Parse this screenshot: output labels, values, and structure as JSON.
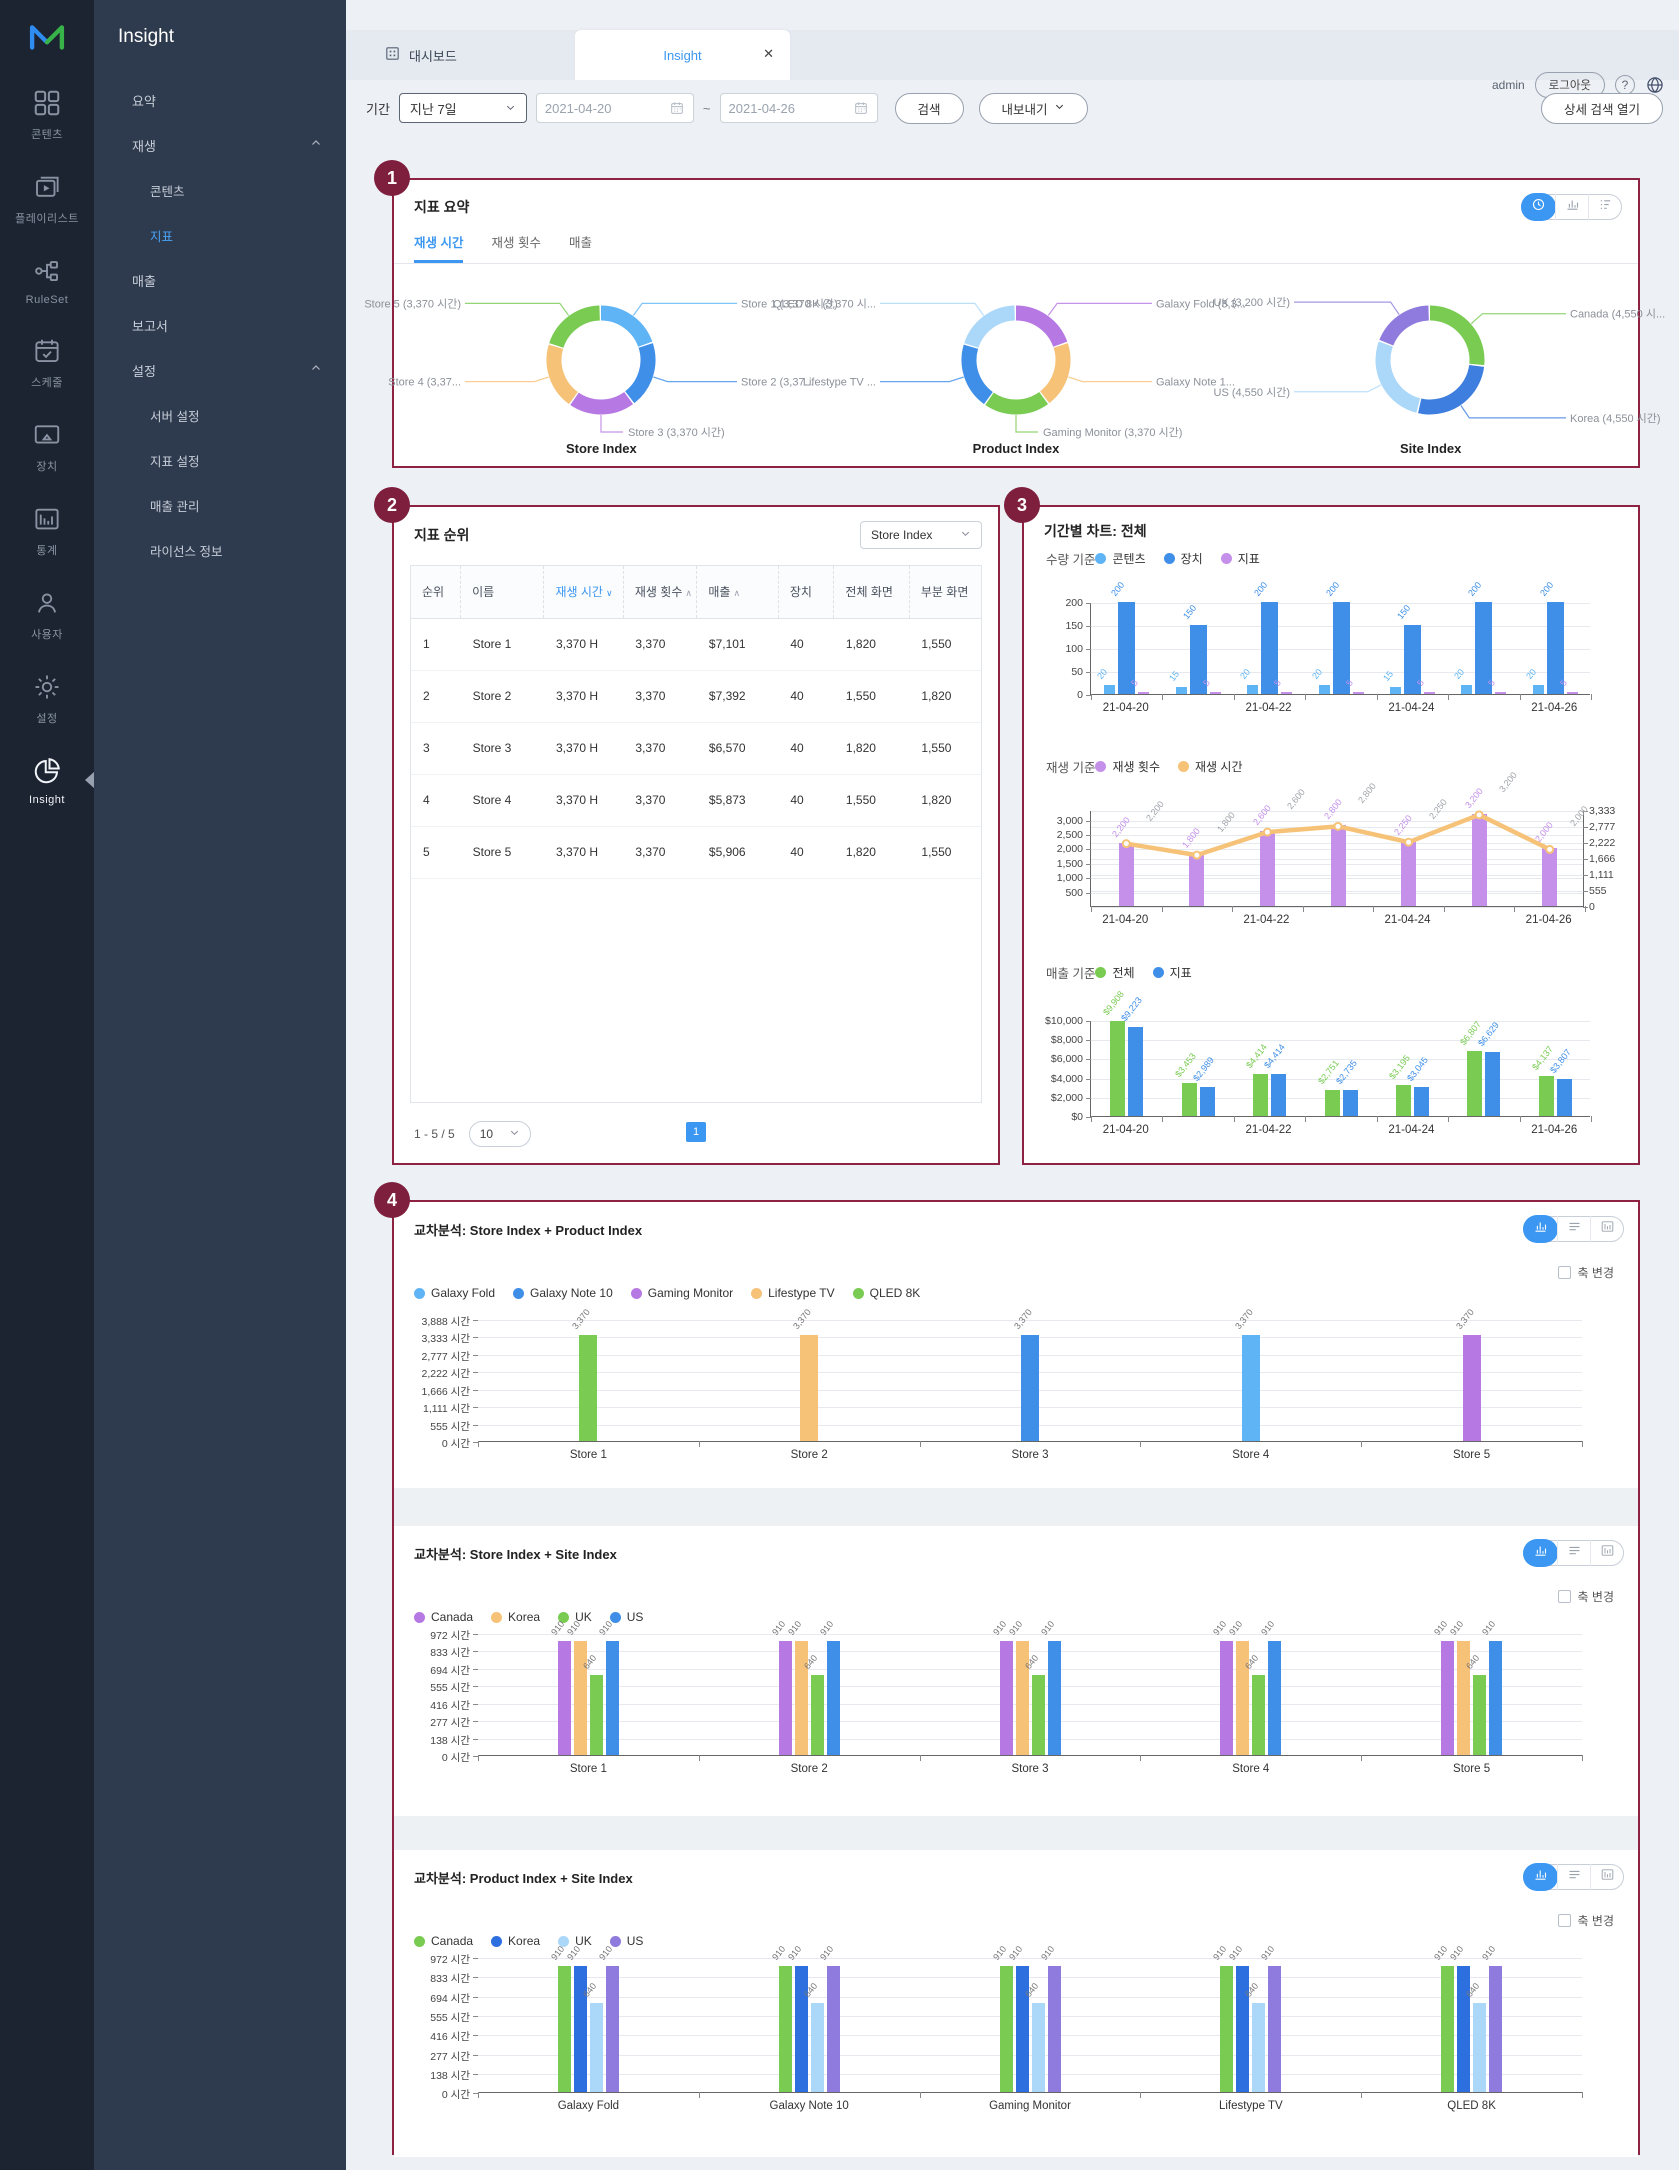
{
  "app": {
    "title": "Insight"
  },
  "rail": {
    "items": [
      {
        "icon": "grid",
        "label": "콘텐츠",
        "active": false
      },
      {
        "icon": "playlist",
        "label": "플레이리스트",
        "active": false
      },
      {
        "icon": "ruleset",
        "label": "RuleSet",
        "active": false
      },
      {
        "icon": "schedule",
        "label": "스케줄",
        "active": false
      },
      {
        "icon": "device",
        "label": "장치",
        "active": false
      },
      {
        "icon": "stats",
        "label": "통계",
        "active": false
      },
      {
        "icon": "user",
        "label": "사용자",
        "active": false
      },
      {
        "icon": "gear",
        "label": "설정",
        "active": false
      },
      {
        "icon": "pie",
        "label": "Insight",
        "active": true
      }
    ]
  },
  "sidebar": {
    "title": "Insight",
    "items": [
      {
        "label": "요약",
        "level": 1,
        "active": false,
        "caret": false
      },
      {
        "label": "재생",
        "level": 1,
        "active": false,
        "caret": true
      },
      {
        "label": "콘텐츠",
        "level": 2,
        "active": false,
        "caret": false
      },
      {
        "label": "지표",
        "level": 2,
        "active": true,
        "caret": false
      },
      {
        "label": "매출",
        "level": 1,
        "active": false,
        "caret": false
      },
      {
        "label": "보고서",
        "level": 1,
        "active": false,
        "caret": false
      },
      {
        "label": "설정",
        "level": 1,
        "active": false,
        "caret": true
      },
      {
        "label": "서버 설정",
        "level": 2,
        "active": false,
        "caret": false
      },
      {
        "label": "지표 설정",
        "level": 2,
        "active": false,
        "caret": false
      },
      {
        "label": "매출 관리",
        "level": 2,
        "active": false,
        "caret": false
      },
      {
        "label": "라이선스 정보",
        "level": 2,
        "active": false,
        "caret": false
      }
    ]
  },
  "topbar": {
    "tab_dashboard": "대시보드",
    "tab_insight": "Insight",
    "close": "✕",
    "user": "admin",
    "logout": "로그아웃",
    "help": "?"
  },
  "filters": {
    "period_label": "기간",
    "period_value": "지난 7일",
    "date_from": "2021-04-20",
    "tilde": "~",
    "date_to": "2021-04-26",
    "search": "검색",
    "export": "내보내기",
    "advanced": "상세 검색 열기"
  },
  "section1": {
    "badge": "1",
    "title": "지표 요약",
    "tabs": [
      "재생 시간",
      "재생 횟수",
      "매출"
    ],
    "active_tab": 0
  },
  "section2": {
    "badge": "2",
    "title": "지표 순위",
    "index_select": "Store Index",
    "table": {
      "headers": [
        {
          "label": "순위",
          "sort": null,
          "active": false
        },
        {
          "label": "이름",
          "sort": null,
          "active": false
        },
        {
          "label": "재생 시간",
          "sort": "down",
          "active": true
        },
        {
          "label": "재생 횟수",
          "sort": "up",
          "active": false
        },
        {
          "label": "매출",
          "sort": "up",
          "active": false
        },
        {
          "label": "장치",
          "sort": null,
          "active": false
        },
        {
          "label": "전체 화면",
          "sort": null,
          "active": false
        },
        {
          "label": "부분 화면",
          "sort": null,
          "active": false
        }
      ],
      "rows": [
        [
          "1",
          "Store 1",
          "3,370 H",
          "3,370",
          "$7,101",
          "40",
          "1,820",
          "1,550"
        ],
        [
          "2",
          "Store 2",
          "3,370 H",
          "3,370",
          "$7,392",
          "40",
          "1,550",
          "1,820"
        ],
        [
          "3",
          "Store 3",
          "3,370 H",
          "3,370",
          "$6,570",
          "40",
          "1,820",
          "1,550"
        ],
        [
          "4",
          "Store 4",
          "3,370 H",
          "3,370",
          "$5,873",
          "40",
          "1,550",
          "1,820"
        ],
        [
          "5",
          "Store 5",
          "3,370 H",
          "3,370",
          "$5,906",
          "40",
          "1,820",
          "1,550"
        ]
      ]
    },
    "pagination": {
      "range": "1 - 5 / 5",
      "page_size": "10",
      "page": "1"
    }
  },
  "section3": {
    "badge": "3",
    "title": "기간별 차트: 전체"
  },
  "section4": {
    "badge": "4",
    "axis_change": "축 변경"
  },
  "chart_data": [
    {
      "id": "donut-store",
      "type": "pie",
      "title": "Store Index",
      "slices": [
        {
          "label": "Store 1 (3,370 시간)",
          "value": 3370,
          "color": "#5FB4F5"
        },
        {
          "label": "Store 2 (3,37...",
          "value": 3370,
          "color": "#3F8FE8"
        },
        {
          "label": "Store 3 (3,370 시간)",
          "value": 3370,
          "color": "#B678E2"
        },
        {
          "label": "Store 4 (3,37...",
          "value": 3370,
          "color": "#F6C277"
        },
        {
          "label": "Store 5 (3,370 시간)",
          "value": 3370,
          "color": "#79CB52"
        }
      ]
    },
    {
      "id": "donut-product",
      "type": "pie",
      "title": "Product Index",
      "slices": [
        {
          "label": "Galaxy Fold (3,3...",
          "value": 3370,
          "color": "#B678E2"
        },
        {
          "label": "Galaxy Note 1...",
          "value": 3370,
          "color": "#F6C277"
        },
        {
          "label": "Gaming Monitor (3,370 시간)",
          "value": 3370,
          "color": "#79CB52"
        },
        {
          "label": "Lifestype TV ...",
          "value": 3370,
          "color": "#3F8FE8"
        },
        {
          "label": "QLED 8K (3,370 시...",
          "value": 3370,
          "color": "#ABD7F8"
        }
      ]
    },
    {
      "id": "donut-site",
      "type": "pie",
      "title": "Site Index",
      "slices": [
        {
          "label": "Canada (4,550 시...",
          "value": 4550,
          "color": "#79CB52"
        },
        {
          "label": "Korea (4,550 시간)",
          "value": 4550,
          "color": "#3D7EDE"
        },
        {
          "label": "US (4,550 시간)",
          "value": 4550,
          "color": "#ABD7F8"
        },
        {
          "label": "UK (3,200 시간)",
          "value": 3200,
          "color": "#8F7ADD"
        }
      ]
    },
    {
      "id": "chart-qty",
      "type": "bar",
      "title": "수량 기준",
      "categories": [
        "21-04-20",
        "21-04-21",
        "21-04-22",
        "21-04-23",
        "21-04-24",
        "21-04-25",
        "21-04-26"
      ],
      "xshow": [
        0,
        2,
        4,
        6
      ],
      "max": 200,
      "ticks": [
        {
          "label": "200",
          "v": 200
        },
        {
          "label": "150",
          "v": 150
        },
        {
          "label": "100",
          "v": 100
        },
        {
          "label": "50",
          "v": 50
        },
        {
          "label": "0",
          "v": 0
        }
      ],
      "series": [
        {
          "name": "콘텐츠",
          "color": "#5FB4F5",
          "w": 11,
          "values": [
            20,
            15,
            20,
            20,
            15,
            20,
            20
          ],
          "labels": [
            "20",
            "15",
            "20",
            "20",
            "15",
            "20",
            "20"
          ]
        },
        {
          "name": "장치",
          "color": "#3F8FE8",
          "w": 17,
          "values": [
            200,
            150,
            200,
            200,
            150,
            200,
            200
          ],
          "labels": [
            "200",
            "150",
            "200",
            "200",
            "150",
            "200",
            "200"
          ]
        },
        {
          "name": "지표",
          "color": "#C490EA",
          "w": 11,
          "values": [
            5,
            5,
            5,
            5,
            5,
            5,
            5
          ],
          "labels": [
            "5",
            "5",
            "5",
            "5",
            "5",
            "5",
            "5"
          ]
        }
      ]
    },
    {
      "id": "chart-play",
      "type": "bar+line",
      "title": "재생 기준",
      "categories": [
        "21-04-20",
        "21-04-21",
        "21-04-22",
        "21-04-23",
        "21-04-24",
        "21-04-25",
        "21-04-26"
      ],
      "xshow": [
        0,
        2,
        4,
        6
      ],
      "max": 3333,
      "ticks": [
        {
          "label": "3,000",
          "v": 3000
        },
        {
          "label": "2,500",
          "v": 2500
        },
        {
          "label": "2,000",
          "v": 2000
        },
        {
          "label": "1,500",
          "v": 1500
        },
        {
          "label": "1,000",
          "v": 1000
        },
        {
          "label": "500",
          "v": 500
        }
      ],
      "ticks2": [
        {
          "label": "3,333",
          "v": 3333
        },
        {
          "label": "2,777",
          "v": 2777
        },
        {
          "label": "2,222",
          "v": 2222
        },
        {
          "label": "1,666",
          "v": 1666
        },
        {
          "label": "1,111",
          "v": 1111
        },
        {
          "label": "555",
          "v": 555
        },
        {
          "label": "0",
          "v": 0
        }
      ],
      "series": [
        {
          "name": "재생 횟수",
          "color": "#C490EA",
          "w": 15,
          "values": [
            2200,
            1800,
            2600,
            2800,
            2250,
            3200,
            2000
          ],
          "labels": [
            "2,200",
            "1,800",
            "2,600",
            "2,800",
            "2,250",
            "3,200",
            "2,000"
          ]
        }
      ],
      "line": {
        "name": "재생 시간",
        "color": "#F6C277",
        "values": [
          2200,
          1800,
          2600,
          2800,
          2250,
          3200,
          2000
        ],
        "labels": [
          "2,200",
          "1,800",
          "2,600",
          "2,800",
          "2,250",
          "3,200",
          "2,000"
        ]
      }
    },
    {
      "id": "chart-rev",
      "type": "bar",
      "title": "매출 기준",
      "categories": [
        "21-04-20",
        "21-04-21",
        "21-04-22",
        "21-04-23",
        "21-04-24",
        "21-04-25",
        "21-04-26"
      ],
      "xshow": [
        0,
        2,
        4,
        6
      ],
      "max": 10000,
      "ticks": [
        {
          "label": "$10,000",
          "v": 10000
        },
        {
          "label": "$8,000",
          "v": 8000
        },
        {
          "label": "$6,000",
          "v": 6000
        },
        {
          "label": "$4,000",
          "v": 4000
        },
        {
          "label": "$2,000",
          "v": 2000
        },
        {
          "label": "$0",
          "v": 0
        }
      ],
      "series": [
        {
          "name": "전체",
          "color": "#79CB52",
          "w": 15,
          "values": [
            9908,
            3453,
            4414,
            2751,
            3195,
            6807,
            4137
          ],
          "labels": [
            "$9,908",
            "$3,453",
            "$4,414",
            "$2,751",
            "$3,195",
            "$6,807",
            "$4,137"
          ]
        },
        {
          "name": "지표",
          "color": "#3F8FE8",
          "w": 15,
          "values": [
            9223,
            2989,
            4414,
            2735,
            3045,
            6629,
            3807
          ],
          "labels": [
            "$9,223",
            "$2,989",
            "$4,414",
            "$2,735",
            "$3,045",
            "$6,629",
            "$3,807"
          ]
        }
      ]
    },
    {
      "id": "cross1",
      "type": "bar",
      "title": "교차분석: Store Index + Product Index",
      "categories": [
        "Store 1",
        "Store 2",
        "Store 3",
        "Store 4",
        "Store 5"
      ],
      "max": 3888,
      "ticks": [
        {
          "label": "3,888 시간",
          "v": 3888
        },
        {
          "label": "3,333 시간",
          "v": 3333
        },
        {
          "label": "2,777 시간",
          "v": 2777
        },
        {
          "label": "2,222 시간",
          "v": 2222
        },
        {
          "label": "1,666 시간",
          "v": 1666
        },
        {
          "label": "1,111 시간",
          "v": 1111
        },
        {
          "label": "555 시간",
          "v": 555
        },
        {
          "label": "0 시간",
          "v": 0
        }
      ],
      "legend": [
        {
          "label": "Galaxy Fold",
          "color": "#5FB4F5"
        },
        {
          "label": "Galaxy Note 10",
          "color": "#3F8FE8"
        },
        {
          "label": "Gaming Monitor",
          "color": "#B678E2"
        },
        {
          "label": "Lifestype TV",
          "color": "#F6C277"
        },
        {
          "label": "QLED 8K",
          "color": "#79CB52"
        }
      ],
      "series": [
        {
          "name": "재생 시간",
          "w": 18,
          "labelColor": "#777",
          "colors": [
            "#79CB52",
            "#F6C277",
            "#3F8FE8",
            "#5FB4F5",
            "#B678E2"
          ],
          "values": [
            3370,
            3370,
            3370,
            3370,
            3370
          ],
          "labels": [
            "3,370",
            "3,370",
            "3,370",
            "3,370",
            "3,370"
          ]
        }
      ]
    },
    {
      "id": "cross2",
      "type": "bar",
      "title": "교차분석: Store Index + Site Index",
      "categories": [
        "Store 1",
        "Store 2",
        "Store 3",
        "Store 4",
        "Store 5"
      ],
      "max": 972,
      "ticks": [
        {
          "label": "972 시간",
          "v": 972
        },
        {
          "label": "833 시간",
          "v": 833
        },
        {
          "label": "694 시간",
          "v": 694
        },
        {
          "label": "555 시간",
          "v": 555
        },
        {
          "label": "416 시간",
          "v": 416
        },
        {
          "label": "277 시간",
          "v": 277
        },
        {
          "label": "138 시간",
          "v": 138
        },
        {
          "label": "0 시간",
          "v": 0
        }
      ],
      "legend": [
        {
          "label": "Canada",
          "color": "#B678E2"
        },
        {
          "label": "Korea",
          "color": "#F6C277"
        },
        {
          "label": "UK",
          "color": "#79CB52"
        },
        {
          "label": "US",
          "color": "#3F8FE8"
        }
      ],
      "series": [
        {
          "name": "Canada",
          "color": "#B678E2",
          "w": 13,
          "labelColor": "#777",
          "values": [
            910,
            910,
            910,
            910,
            910
          ],
          "labels": [
            "910",
            "910",
            "910",
            "910",
            "910"
          ]
        },
        {
          "name": "Korea",
          "color": "#F6C277",
          "w": 13,
          "labelColor": "#777",
          "values": [
            910,
            910,
            910,
            910,
            910
          ],
          "labels": [
            "910",
            "910",
            "910",
            "910",
            "910"
          ]
        },
        {
          "name": "UK",
          "color": "#79CB52",
          "w": 13,
          "labelColor": "#777",
          "values": [
            640,
            640,
            640,
            640,
            640
          ],
          "labels": [
            "640",
            "640",
            "640",
            "640",
            "640"
          ]
        },
        {
          "name": "US",
          "color": "#3F8FE8",
          "w": 13,
          "labelColor": "#777",
          "values": [
            910,
            910,
            910,
            910,
            910
          ],
          "labels": [
            "910",
            "910",
            "910",
            "910",
            "910"
          ]
        }
      ]
    },
    {
      "id": "cross3",
      "type": "bar",
      "title": "교차분석: Product Index + Site Index",
      "categories": [
        "Galaxy Fold",
        "Galaxy Note 10",
        "Gaming Monitor",
        "Lifestype TV",
        "QLED 8K"
      ],
      "max": 972,
      "ticks": [
        {
          "label": "972 시간",
          "v": 972
        },
        {
          "label": "833 시간",
          "v": 833
        },
        {
          "label": "694 시간",
          "v": 694
        },
        {
          "label": "555 시간",
          "v": 555
        },
        {
          "label": "416 시간",
          "v": 416
        },
        {
          "label": "277 시간",
          "v": 277
        },
        {
          "label": "138 시간",
          "v": 138
        },
        {
          "label": "0 시간",
          "v": 0
        }
      ],
      "legend": [
        {
          "label": "Canada",
          "color": "#79CB52"
        },
        {
          "label": "Korea",
          "color": "#2E6FE0"
        },
        {
          "label": "UK",
          "color": "#ABD7F8"
        },
        {
          "label": "US",
          "color": "#8F7ADD"
        }
      ],
      "series": [
        {
          "name": "Canada",
          "color": "#79CB52",
          "w": 13,
          "labelColor": "#777",
          "values": [
            910,
            910,
            910,
            910,
            910
          ],
          "labels": [
            "910",
            "910",
            "910",
            "910",
            "910"
          ]
        },
        {
          "name": "Korea",
          "color": "#2E6FE0",
          "w": 13,
          "labelColor": "#777",
          "values": [
            910,
            910,
            910,
            910,
            910
          ],
          "labels": [
            "910",
            "910",
            "910",
            "910",
            "910"
          ]
        },
        {
          "name": "UK",
          "color": "#ABD7F8",
          "w": 13,
          "labelColor": "#777",
          "values": [
            640,
            640,
            640,
            640,
            640
          ],
          "labels": [
            "640",
            "640",
            "640",
            "640",
            "640"
          ]
        },
        {
          "name": "US",
          "color": "#8F7ADD",
          "w": 13,
          "labelColor": "#777",
          "values": [
            910,
            910,
            910,
            910,
            910
          ],
          "labels": [
            "910",
            "910",
            "910",
            "910",
            "910"
          ]
        }
      ]
    }
  ]
}
